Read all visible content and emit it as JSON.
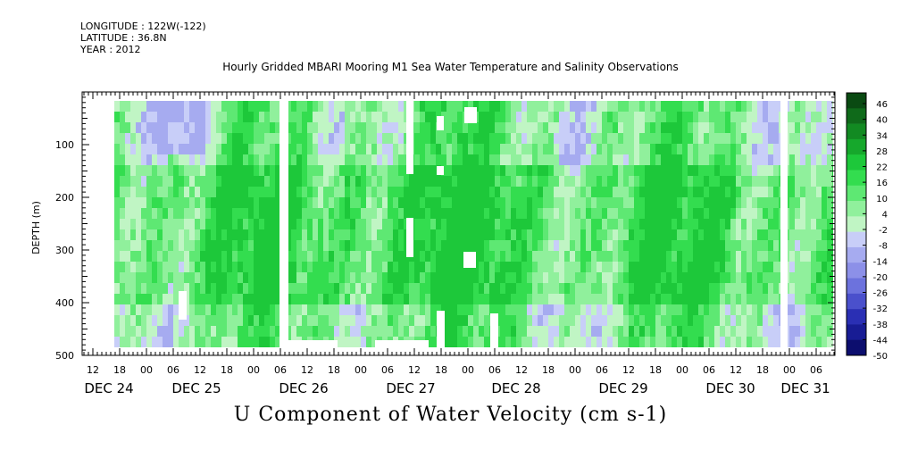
{
  "header": {
    "longitude": "LONGITUDE : 122W(-122)",
    "latitude": "LATITUDE : 36.8N",
    "year": "YEAR : 2012"
  },
  "chart_data": {
    "type": "heatmap",
    "title": "Hourly Gridded MBARI Mooring M1 Sea Water Temperature and Salinity Observations",
    "xlabel": "U Component of Water Velocity (cm s-1)",
    "ylabel": "DEPTH (m)",
    "ylim": [
      500,
      0
    ],
    "yticks": [
      100,
      200,
      300,
      400,
      500
    ],
    "x_hour_ticks": [
      "12",
      "18",
      "00",
      "06",
      "12",
      "18",
      "00",
      "06",
      "12",
      "18",
      "00",
      "06",
      "12",
      "18",
      "00",
      "06",
      "12",
      "18",
      "00",
      "06",
      "12",
      "18",
      "00",
      "06",
      "12",
      "18",
      "00",
      "06"
    ],
    "day_labels": [
      "DEC 24",
      "DEC 25",
      "DEC 26",
      "DEC 27",
      "DEC 28",
      "DEC 29",
      "DEC 30",
      "DEC 31"
    ],
    "colorbar_levels": [
      "46",
      "40",
      "34",
      "28",
      "22",
      "16",
      "10",
      "4",
      "-2",
      "-8",
      "-14",
      "-20",
      "-26",
      "-32",
      "-38",
      "-44",
      "-50"
    ],
    "colorbar_colors": [
      "#0a4a12",
      "#0f6a1a",
      "#128a22",
      "#16a82c",
      "#1dc83a",
      "#33dd4f",
      "#5ee873",
      "#90f09c",
      "#c0f5c4",
      "#c8cef8",
      "#a6abf0",
      "#8c90e8",
      "#6c72dd",
      "#4a50cc",
      "#2a2fb4",
      "#181c94",
      "#0c0e6e"
    ],
    "data_description": "Depth (m) vs time heatmap of U velocity; mostly -5 to +20 cm/s, green (eastward) dominant mid-depth, blue (westward) near surface and bottom"
  }
}
